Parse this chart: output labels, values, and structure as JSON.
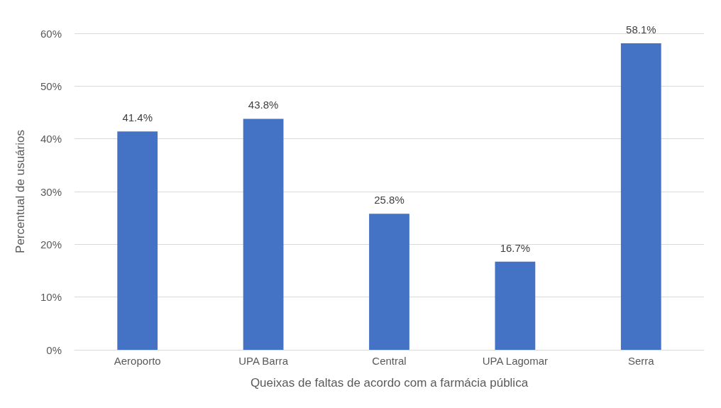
{
  "chart_data": {
    "type": "bar",
    "xlabel": "Queixas de faltas de acordo com a farmácia pública",
    "ylabel": "Percentual de usuários",
    "categories": [
      "Aeroporto",
      "UPA Barra",
      "Central",
      "UPA Lagomar",
      "Serra"
    ],
    "values": [
      41.4,
      43.8,
      25.8,
      16.7,
      58.1
    ],
    "value_labels": [
      "41.4%",
      "43.8%",
      "25.8%",
      "16.7%",
      "58.1%"
    ],
    "color": "#4472c4",
    "ylim": [
      0,
      60
    ],
    "yticks": [
      {
        "value": 0,
        "label": "0%"
      },
      {
        "value": 10,
        "label": "10%"
      },
      {
        "value": 20,
        "label": "20%"
      },
      {
        "value": 30,
        "label": "30%"
      },
      {
        "value": 40,
        "label": "40%"
      },
      {
        "value": 50,
        "label": "50%"
      },
      {
        "value": 60,
        "label": "60%"
      }
    ],
    "grid": "y"
  }
}
